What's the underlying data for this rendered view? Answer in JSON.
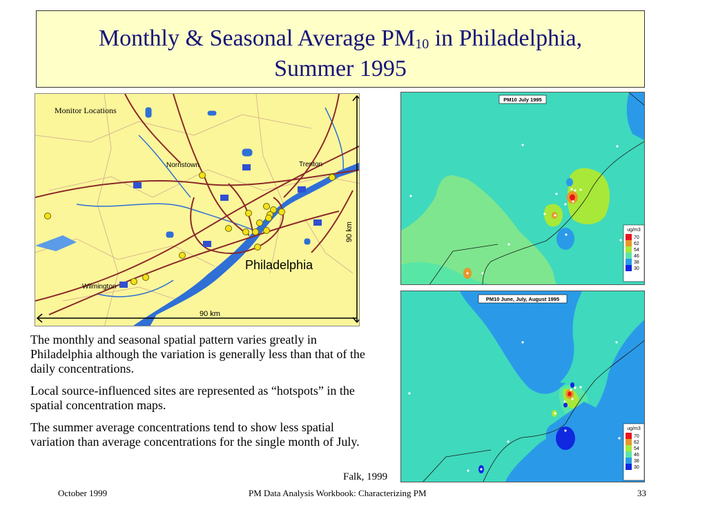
{
  "title": {
    "line1_prefix": "Monthly & Seasonal Average PM",
    "line1_sub": "10",
    "line1_suffix": " in Philadelphia,",
    "line2": "Summer 1995"
  },
  "left_map": {
    "caption": "Monitor Locations",
    "places": {
      "norristown": "Norristown",
      "trenton": "Trenton",
      "philadelphia": "Philadelphia",
      "wilmington": "Wilmington"
    },
    "scale_horizontal": "90 km",
    "scale_vertical": "90 km",
    "colors": {
      "land": "#fbf69a",
      "water": "#2f6fd6",
      "roads": "#8b2a2a",
      "monitors": "#f5e11a"
    }
  },
  "maps": [
    {
      "title": "PM10 July 1995",
      "legend": {
        "unit": "ug/m3",
        "levels": [
          "70",
          "62",
          "54",
          "46",
          "38",
          "30"
        ],
        "colors": [
          "#e8141e",
          "#e8962a",
          "#a8e838",
          "#58e6a6",
          "#2a9ae8",
          "#1028e0"
        ]
      }
    },
    {
      "title": "PM10 June, July, August 1995",
      "legend": {
        "unit": "ug/m3",
        "levels": [
          "70",
          "62",
          "54",
          "46",
          "38",
          "30"
        ],
        "colors": [
          "#e8141e",
          "#e8962a",
          "#a8e838",
          "#58e6a6",
          "#2a9ae8",
          "#1028e0"
        ]
      }
    }
  ],
  "body": {
    "p1": "The monthly and seasonal spatial pattern varies greatly in Philadelphia although the variation is generally less than that of the daily concentrations.",
    "p2": "Local source-influenced sites are represented as “hotspots” in the spatial concentration maps.",
    "p3": "The summer average concentrations tend to show less spatial variation than average concentrations for the single month of July."
  },
  "credit": "Falk, 1999",
  "footer": {
    "left": "October 1999",
    "center": "PM Data Analysis Workbook: Characterizing PM",
    "right": "33"
  }
}
